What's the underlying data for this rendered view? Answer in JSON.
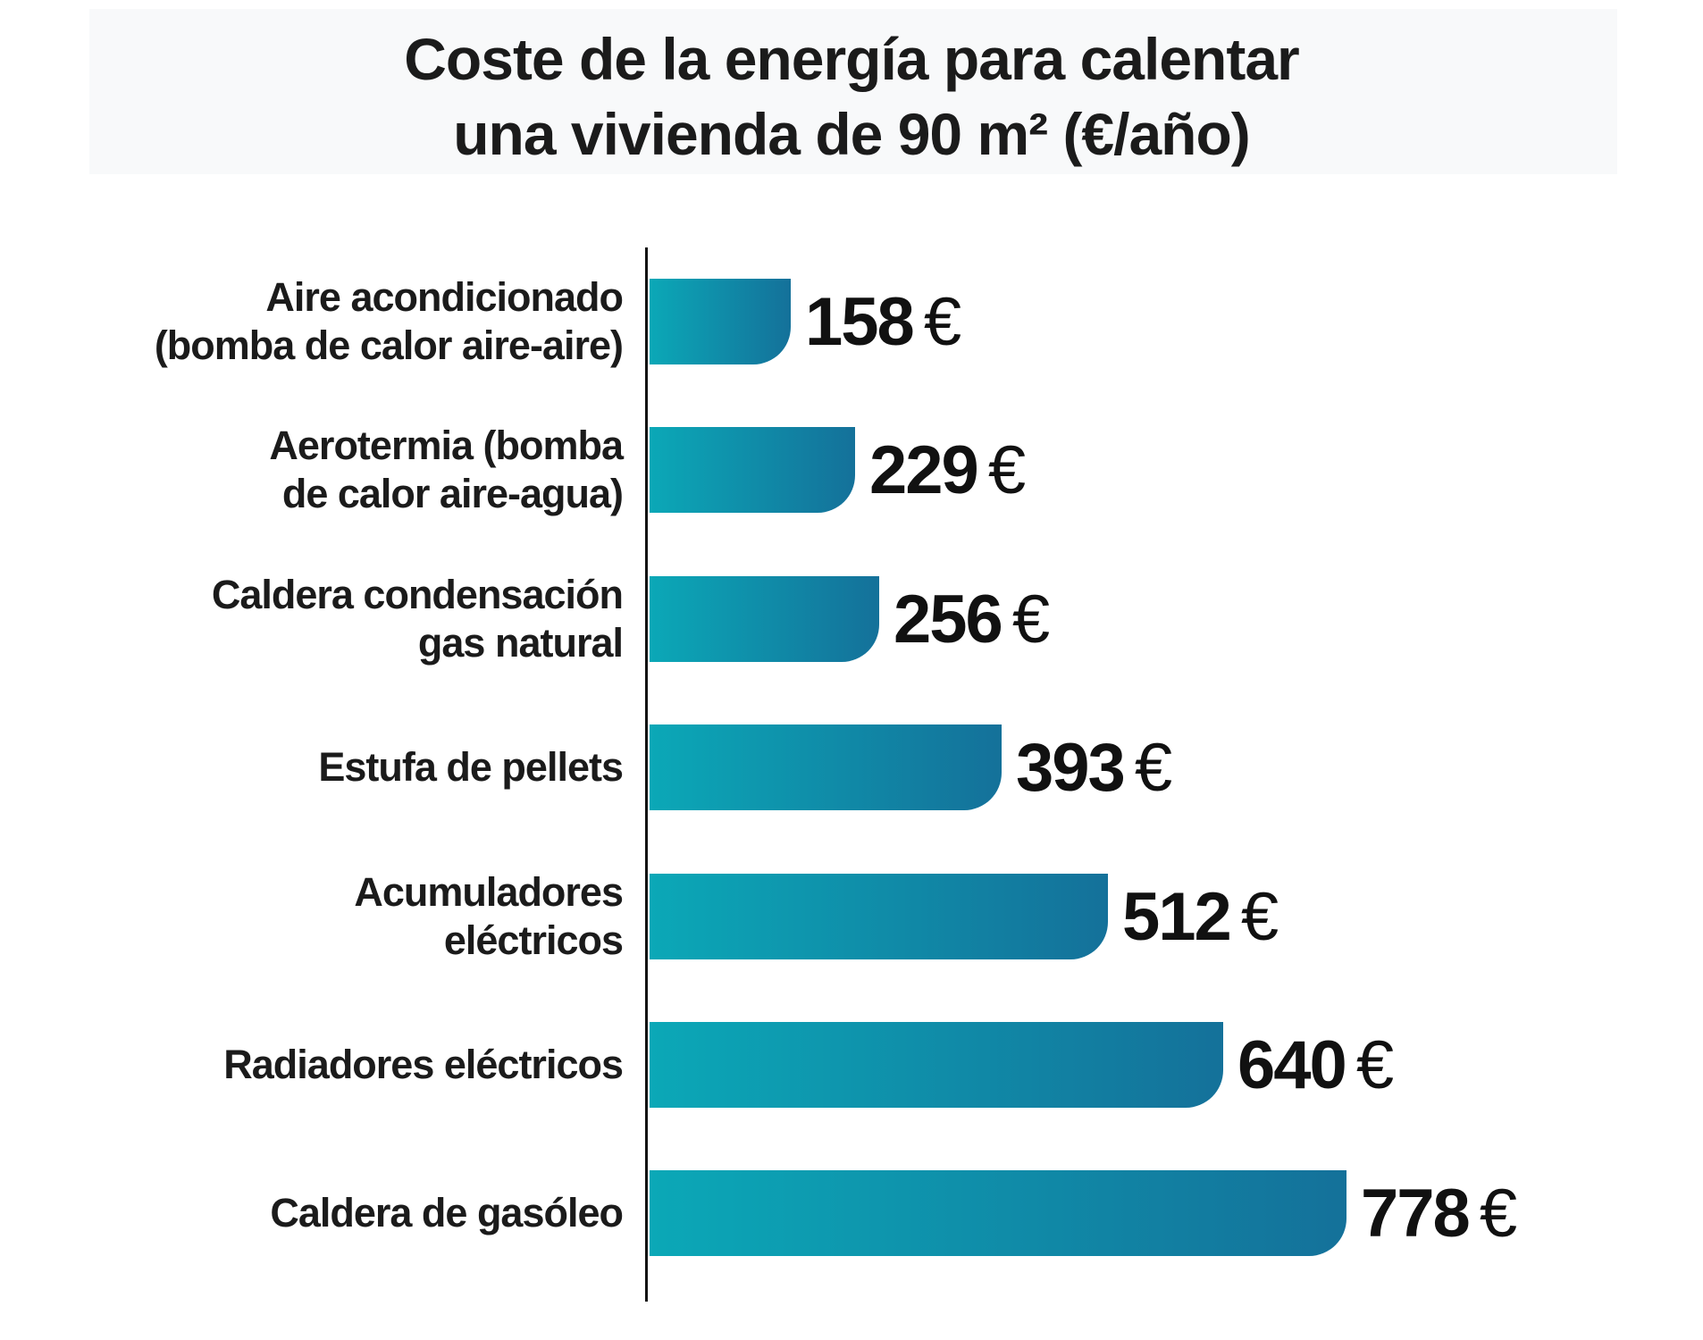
{
  "title": {
    "line1": "Coste de la energía para calentar",
    "line2": "una vivienda de 90 m² (€/año)"
  },
  "chart_data": {
    "type": "bar",
    "orientation": "horizontal",
    "title": "Coste de la energía para calentar una vivienda de 90 m² (€/año)",
    "unit": "€/año",
    "value_suffix": "€",
    "xlim": [
      0,
      800
    ],
    "grid": false,
    "legend": false,
    "categories": [
      "Aire acondicionado (bomba de calor aire-aire)",
      "Aerotermia (bomba de calor aire-agua)",
      "Caldera condensación gas natural",
      "Estufa de pellets",
      "Acumuladores eléctricos",
      "Radiadores eléctricos",
      "Caldera de gasóleo"
    ],
    "values": [
      158,
      229,
      256,
      393,
      512,
      640,
      778
    ],
    "items": [
      {
        "label_lines": [
          "Aire acondicionado",
          "(bomba de calor aire-aire)"
        ],
        "value": 158,
        "value_text": "158",
        "suffix": "€"
      },
      {
        "label_lines": [
          "Aerotermia (bomba",
          "de calor aire-agua)"
        ],
        "value": 229,
        "value_text": "229",
        "suffix": "€"
      },
      {
        "label_lines": [
          "Caldera condensación",
          "gas natural"
        ],
        "value": 256,
        "value_text": "256",
        "suffix": "€"
      },
      {
        "label_lines": [
          "Estufa de pellets"
        ],
        "value": 393,
        "value_text": "393",
        "suffix": "€"
      },
      {
        "label_lines": [
          "Acumuladores",
          "eléctricos"
        ],
        "value": 512,
        "value_text": "512",
        "suffix": "€"
      },
      {
        "label_lines": [
          "Radiadores eléctricos"
        ],
        "value": 640,
        "value_text": "640",
        "suffix": "€"
      },
      {
        "label_lines": [
          "Caldera de gasóleo"
        ],
        "value": 778,
        "value_text": "778",
        "suffix": "€"
      }
    ]
  },
  "colors": {
    "background": "#ffffff",
    "title_band_bg": "#f8f9fa",
    "bar_gradient_start": "#0ba8b7",
    "bar_gradient_end": "#14719a",
    "axis": "#111111",
    "text": "#1b1b1b"
  }
}
